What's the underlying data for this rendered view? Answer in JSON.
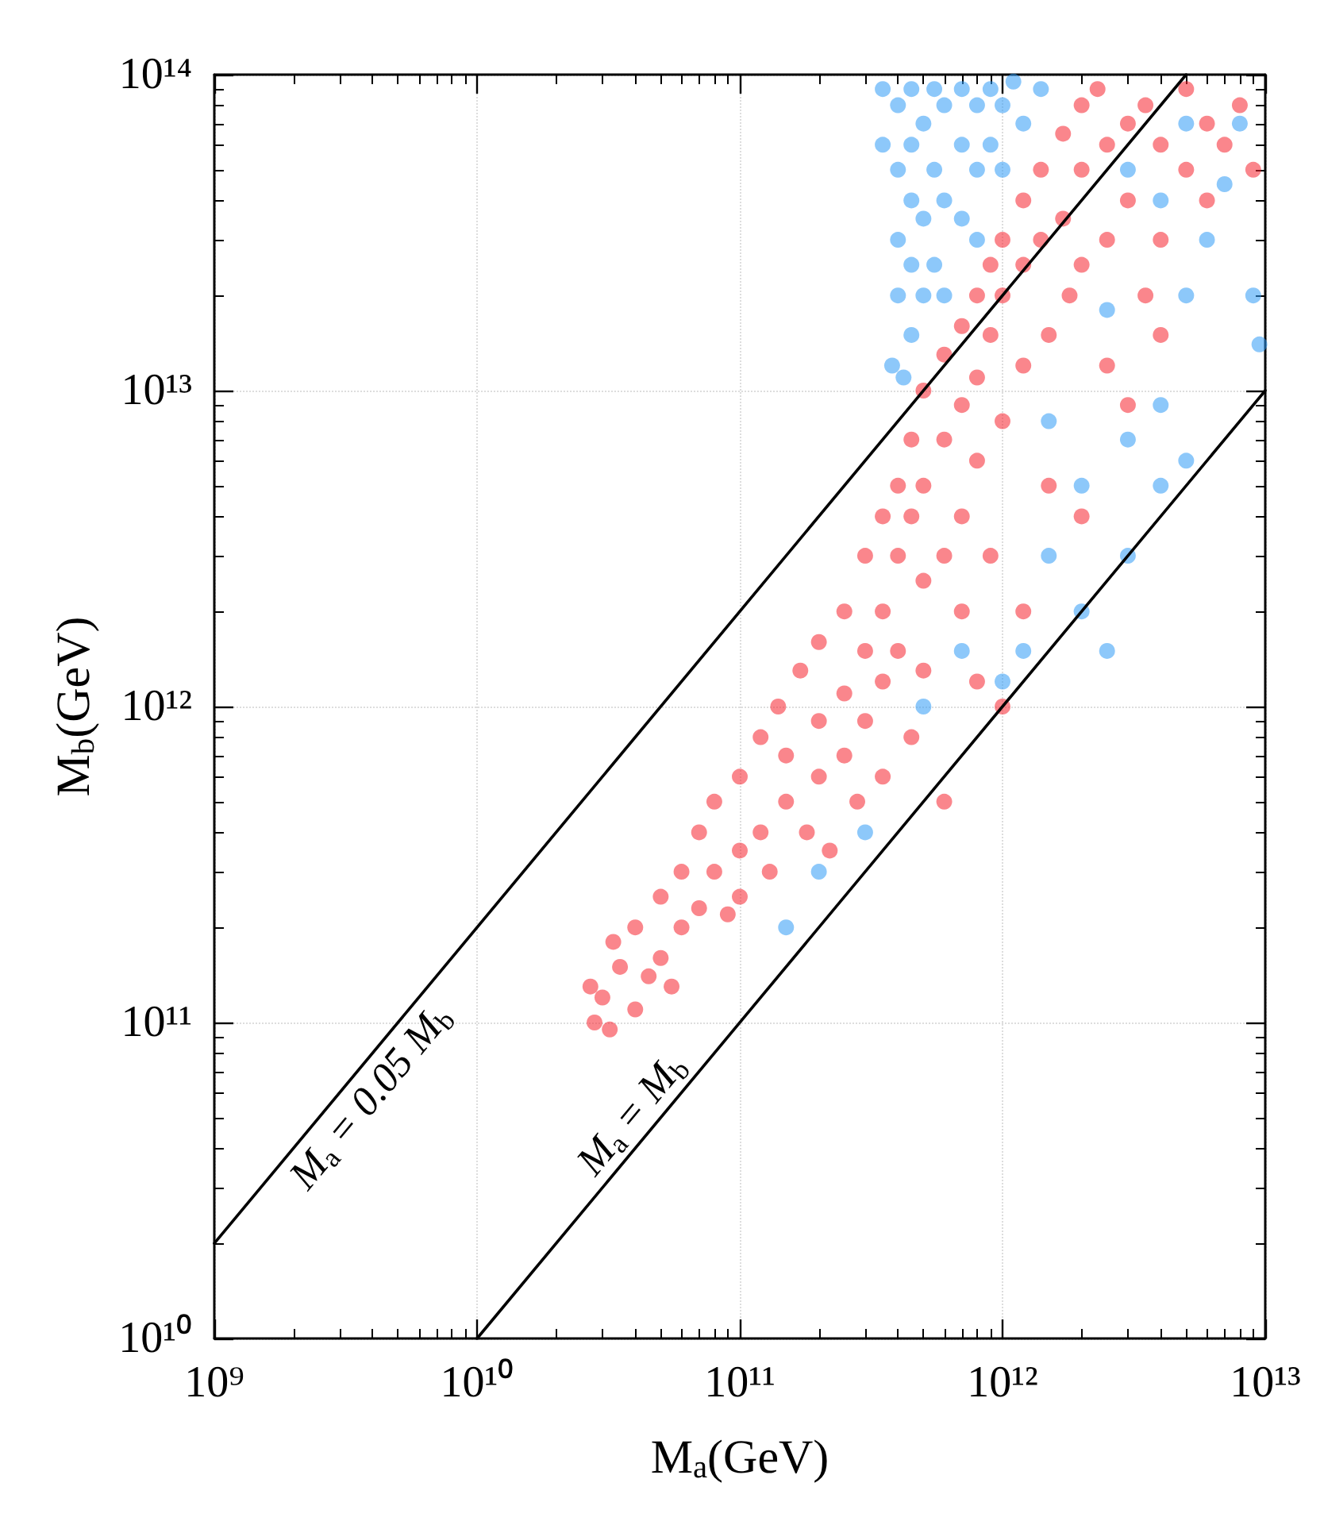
{
  "chart_data": {
    "type": "scatter",
    "xlabel": "M$_{a}$(GeV)",
    "ylabel": "M$_{b}$(GeV)",
    "log": "xy",
    "grid": true,
    "marker": "circle",
    "xlim": [
      1000000000.0,
      10000000000000.0
    ],
    "ylim": [
      10000000000.0,
      100000000000000.0
    ],
    "xticks": [
      {
        "value": 1000000000.0,
        "label": "10⁹"
      },
      {
        "value": 10000000000.0,
        "label": "10¹⁰"
      },
      {
        "value": 100000000000.0,
        "label": "10¹¹"
      },
      {
        "value": 1000000000000.0,
        "label": "10¹²"
      },
      {
        "value": 10000000000000.0,
        "label": "10¹³"
      }
    ],
    "yticks": [
      {
        "value": 10000000000.0,
        "label": "10¹⁰"
      },
      {
        "value": 100000000000.0,
        "label": "10¹¹"
      },
      {
        "value": 1000000000000.0,
        "label": "10¹²"
      },
      {
        "value": 10000000000000.0,
        "label": "10¹³"
      },
      {
        "value": 100000000000000.0,
        "label": "10¹⁴"
      }
    ],
    "series": [
      {
        "color": "#2f9bf5",
        "x": [
          350000000000.0,
          350000000000.0,
          400000000000.0,
          400000000000.0,
          400000000000.0,
          400000000000.0,
          450000000000.0,
          450000000000.0,
          450000000000.0,
          450000000000.0,
          450000000000.0,
          420000000000.0,
          500000000000.0,
          500000000000.0,
          500000000000.0,
          550000000000.0,
          550000000000.0,
          550000000000.0,
          600000000000.0,
          600000000000.0,
          600000000000.0,
          700000000000.0,
          700000000000.0,
          700000000000.0,
          800000000000.0,
          800000000000.0,
          800000000000.0,
          900000000000.0,
          900000000000.0,
          1000000000000.0,
          1000000000000.0,
          1100000000000.0,
          1200000000000.0,
          1400000000000.0,
          380000000000.0,
          3000000000000.0,
          4000000000000.0,
          5000000000000.0,
          6000000000000.0,
          7000000000000.0,
          8000000000000.0,
          9000000000000.0,
          9500000000000.0,
          5000000000000.0,
          4000000000000.0,
          3000000000000.0,
          2000000000000.0,
          1500000000000.0,
          1200000000000.0,
          2000000000000.0,
          3000000000000.0,
          4000000000000.0,
          5000000000000.0,
          2500000000000.0,
          1000000000000.0,
          700000000000.0,
          500000000000.0,
          300000000000.0,
          200000000000.0,
          150000000000.0,
          1500000000000.0,
          2500000000000.0
        ],
        "values": [
          90000000000000.0,
          60000000000000.0,
          80000000000000.0,
          50000000000000.0,
          30000000000000.0,
          20000000000000.0,
          90000000000000.0,
          60000000000000.0,
          40000000000000.0,
          25000000000000.0,
          15000000000000.0,
          11000000000000.0,
          70000000000000.0,
          35000000000000.0,
          20000000000000.0,
          90000000000000.0,
          50000000000000.0,
          25000000000000.0,
          80000000000000.0,
          40000000000000.0,
          20000000000000.0,
          90000000000000.0,
          60000000000000.0,
          35000000000000.0,
          80000000000000.0,
          50000000000000.0,
          30000000000000.0,
          90000000000000.0,
          60000000000000.0,
          80000000000000.0,
          50000000000000.0,
          95000000000000.0,
          70000000000000.0,
          90000000000000.0,
          12000000000000.0,
          50000000000000.0,
          40000000000000.0,
          70000000000000.0,
          30000000000000.0,
          45000000000000.0,
          70000000000000.0,
          20000000000000.0,
          14000000000000.0,
          20000000000000.0,
          9000000000000.0,
          7000000000000.0,
          5000000000000.0,
          3000000000000.0,
          1500000000000.0,
          2000000000000.0,
          3000000000000.0,
          5000000000000.0,
          6000000000000.0,
          1500000000000.0,
          1200000000000.0,
          1500000000000.0,
          1000000000000.0,
          400000000000.0,
          300000000000.0,
          200000000000.0,
          8000000000000.0,
          18000000000000.0
        ]
      },
      {
        "color": "#f5222d",
        "x": [
          28000000000.0,
          30000000000.0,
          32000000000.0,
          27000000000.0,
          35000000000.0,
          40000000000.0,
          40000000000.0,
          33000000000.0,
          45000000000.0,
          50000000000.0,
          50000000000.0,
          60000000000.0,
          60000000000.0,
          55000000000.0,
          70000000000.0,
          70000000000.0,
          80000000000.0,
          80000000000.0,
          90000000000.0,
          100000000000.0,
          100000000000.0,
          100000000000.0,
          120000000000.0,
          120000000000.0,
          130000000000.0,
          140000000000.0,
          150000000000.0,
          150000000000.0,
          170000000000.0,
          180000000000.0,
          200000000000.0,
          200000000000.0,
          200000000000.0,
          220000000000.0,
          250000000000.0,
          250000000000.0,
          250000000000.0,
          280000000000.0,
          300000000000.0,
          300000000000.0,
          300000000000.0,
          350000000000.0,
          350000000000.0,
          350000000000.0,
          350000000000.0,
          400000000000.0,
          400000000000.0,
          400000000000.0,
          450000000000.0,
          450000000000.0,
          450000000000.0,
          500000000000.0,
          500000000000.0,
          500000000000.0,
          500000000000.0,
          600000000000.0,
          600000000000.0,
          600000000000.0,
          600000000000.0,
          700000000000.0,
          700000000000.0,
          700000000000.0,
          700000000000.0,
          800000000000.0,
          800000000000.0,
          800000000000.0,
          800000000000.0,
          900000000000.0,
          900000000000.0,
          900000000000.0,
          1000000000000.0,
          1000000000000.0,
          1000000000000.0,
          1000000000000.0,
          1200000000000.0,
          1200000000000.0,
          1200000000000.0,
          1200000000000.0,
          1400000000000.0,
          1400000000000.0,
          1500000000000.0,
          1500000000000.0,
          1700000000000.0,
          1700000000000.0,
          1800000000000.0,
          2000000000000.0,
          2000000000000.0,
          2000000000000.0,
          2000000000000.0,
          2300000000000.0,
          2500000000000.0,
          2500000000000.0,
          2500000000000.0,
          3000000000000.0,
          3000000000000.0,
          3000000000000.0,
          3500000000000.0,
          3500000000000.0,
          4000000000000.0,
          4000000000000.0,
          5000000000000.0,
          5000000000000.0,
          6000000000000.0,
          6000000000000.0,
          7000000000000.0,
          8000000000000.0,
          9000000000000.0,
          4000000000000.0
        ],
        "values": [
          100000000000.0,
          120000000000.0,
          95000000000.0,
          130000000000.0,
          150000000000.0,
          110000000000.0,
          200000000000.0,
          180000000000.0,
          140000000000.0,
          250000000000.0,
          160000000000.0,
          300000000000.0,
          200000000000.0,
          130000000000.0,
          230000000000.0,
          400000000000.0,
          300000000000.0,
          500000000000.0,
          220000000000.0,
          600000000000.0,
          350000000000.0,
          250000000000.0,
          800000000000.0,
          400000000000.0,
          300000000000.0,
          1000000000000.0,
          500000000000.0,
          700000000000.0,
          1300000000000.0,
          400000000000.0,
          1600000000000.0,
          900000000000.0,
          600000000000.0,
          350000000000.0,
          2000000000000.0,
          1100000000000.0,
          700000000000.0,
          500000000000.0,
          3000000000000.0,
          1500000000000.0,
          900000000000.0,
          4000000000000.0,
          2000000000000.0,
          1200000000000.0,
          600000000000.0,
          5000000000000.0,
          3000000000000.0,
          1500000000000.0,
          7000000000000.0,
          4000000000000.0,
          800000000000.0,
          10000000000000.0,
          5000000000000.0,
          2500000000000.0,
          1300000000000.0,
          13000000000000.0,
          7000000000000.0,
          3000000000000.0,
          500000000000.0,
          16000000000000.0,
          9000000000000.0,
          4000000000000.0,
          2000000000000.0,
          20000000000000.0,
          11000000000000.0,
          6000000000000.0,
          1200000000000.0,
          25000000000000.0,
          15000000000000.0,
          3000000000000.0,
          30000000000000.0,
          20000000000000.0,
          8000000000000.0,
          1000000000000.0,
          40000000000000.0,
          25000000000000.0,
          12000000000000.0,
          2000000000000.0,
          50000000000000.0,
          30000000000000.0,
          15000000000000.0,
          5000000000000.0,
          65000000000000.0,
          35000000000000.0,
          20000000000000.0,
          80000000000000.0,
          50000000000000.0,
          25000000000000.0,
          4000000000000.0,
          90000000000000.0,
          60000000000000.0,
          30000000000000.0,
          12000000000000.0,
          70000000000000.0,
          40000000000000.0,
          9000000000000.0,
          80000000000000.0,
          20000000000000.0,
          60000000000000.0,
          30000000000000.0,
          90000000000000.0,
          50000000000000.0,
          70000000000000.0,
          40000000000000.0,
          60000000000000.0,
          80000000000000.0,
          50000000000000.0,
          15000000000000.0
        ]
      },
      {
        "type": "line",
        "marker": "none",
        "color": "#000000",
        "x": [
          1000000000.0,
          5000000000000.0
        ],
        "values": [
          20000000000.0,
          100000000000000.0
        ]
      },
      {
        "type": "line",
        "marker": "none",
        "color": "#000000",
        "x": [
          10000000000.0,
          10000000000000.0
        ],
        "values": [
          10000000000.0,
          10000000000000.0
        ]
      }
    ],
    "annotations": [
      "M$_{a}$ = 0.05 M$_{b}$",
      "M$_{a}$ = M$_{b}$"
    ]
  }
}
